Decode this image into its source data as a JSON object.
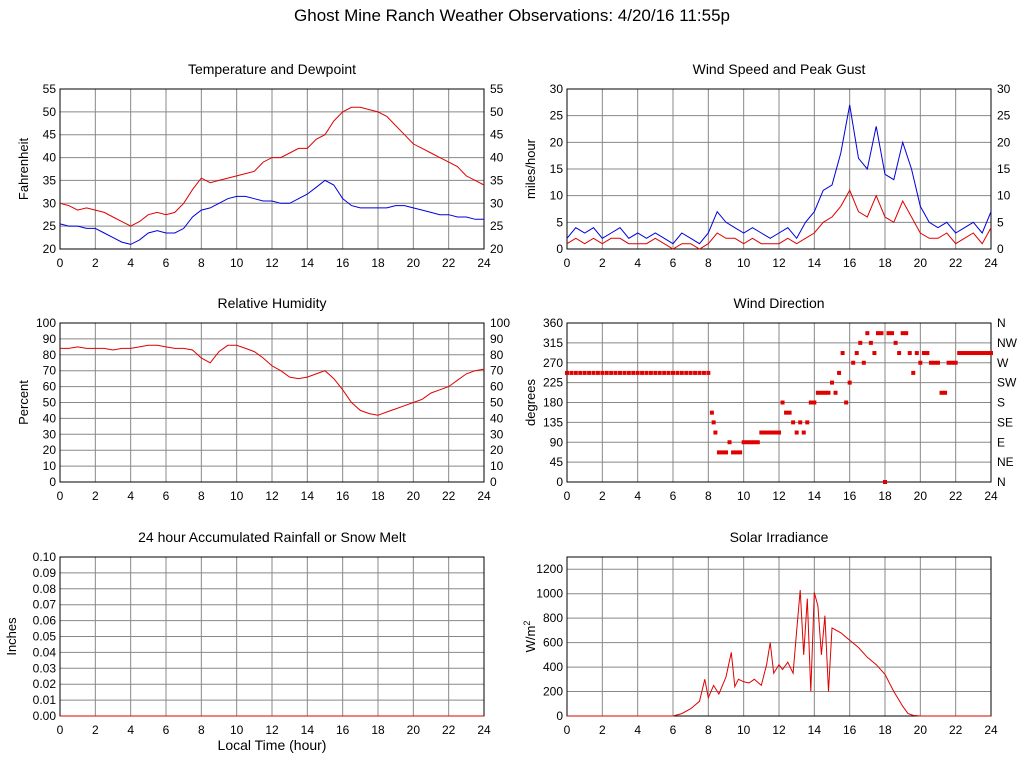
{
  "page_title": "Ghost Mine Ranch Weather Observations: 4/20/16 11:55p",
  "x_axis_label": "Local Time (hour)",
  "colors": {
    "red": "#e00000",
    "blue": "#0000dd"
  },
  "chart_data": [
    {
      "id": "temp",
      "type": "line",
      "title": "Temperature and Dewpoint",
      "ylabel": "Fahrenheit",
      "xlim": [
        0,
        24
      ],
      "ylim": [
        20,
        55
      ],
      "x_ticks": [
        0,
        2,
        4,
        6,
        8,
        10,
        12,
        14,
        16,
        18,
        20,
        22,
        24
      ],
      "y_ticks": [
        20,
        25,
        30,
        35,
        40,
        45,
        50,
        55
      ],
      "right_axis_ticks": [
        "20",
        "25",
        "30",
        "35",
        "40",
        "45",
        "50",
        "55"
      ],
      "series": [
        {
          "color": "#e00000",
          "x": [
            0,
            0.5,
            1,
            1.5,
            2,
            2.5,
            3,
            3.5,
            4,
            4.5,
            5,
            5.5,
            6,
            6.5,
            7,
            7.5,
            8,
            8.5,
            9,
            9.5,
            10,
            10.5,
            11,
            11.5,
            12,
            12.5,
            13,
            13.5,
            14,
            14.5,
            15,
            15.5,
            16,
            16.5,
            17,
            17.5,
            18,
            18.5,
            19,
            19.5,
            20,
            20.5,
            21,
            21.5,
            22,
            22.5,
            23,
            23.5,
            24
          ],
          "y": [
            30,
            29.5,
            28.5,
            29,
            28.5,
            28,
            27,
            26,
            25,
            26,
            27.5,
            28,
            27.5,
            28,
            30,
            33,
            35.5,
            34.5,
            35,
            35.5,
            36,
            36.5,
            37,
            39,
            40,
            40,
            41,
            42,
            42,
            44,
            45,
            48,
            50,
            51,
            51,
            50.5,
            50,
            49,
            47,
            45,
            43,
            42,
            41,
            40,
            39,
            38,
            36,
            35,
            34
          ]
        },
        {
          "color": "#0000dd",
          "x": [
            0,
            0.5,
            1,
            1.5,
            2,
            2.5,
            3,
            3.5,
            4,
            4.5,
            5,
            5.5,
            6,
            6.5,
            7,
            7.5,
            8,
            8.5,
            9,
            9.5,
            10,
            10.5,
            11,
            11.5,
            12,
            12.5,
            13,
            13.5,
            14,
            14.5,
            15,
            15.5,
            16,
            16.5,
            17,
            17.5,
            18,
            18.5,
            19,
            19.5,
            20,
            20.5,
            21,
            21.5,
            22,
            22.5,
            23,
            23.5,
            24
          ],
          "y": [
            25.5,
            25,
            25,
            24.5,
            24.5,
            23.5,
            22.5,
            21.5,
            21,
            22,
            23.5,
            24,
            23.5,
            23.5,
            24.5,
            27,
            28.5,
            29,
            30,
            31,
            31.5,
            31.5,
            31,
            30.5,
            30.5,
            30,
            30,
            31,
            32,
            33.5,
            35,
            34,
            31,
            29.5,
            29,
            29,
            29,
            29,
            29.5,
            29.5,
            29,
            28.5,
            28,
            27.5,
            27.5,
            27,
            27,
            26.5,
            26.5
          ]
        }
      ]
    },
    {
      "id": "wind",
      "type": "line",
      "title": "Wind Speed and Peak Gust",
      "ylabel": "miles/hour",
      "xlim": [
        0,
        24
      ],
      "ylim": [
        0,
        30
      ],
      "x_ticks": [
        0,
        2,
        4,
        6,
        8,
        10,
        12,
        14,
        16,
        18,
        20,
        22,
        24
      ],
      "y_ticks": [
        0,
        5,
        10,
        15,
        20,
        25,
        30
      ],
      "right_axis_ticks": [
        "0",
        "5",
        "10",
        "15",
        "20",
        "25",
        "30"
      ],
      "series": [
        {
          "color": "#0000dd",
          "x": [
            0,
            0.5,
            1,
            1.5,
            2,
            2.5,
            3,
            3.5,
            4,
            4.5,
            5,
            5.5,
            6,
            6.5,
            7,
            7.5,
            8,
            8.5,
            9,
            9.5,
            10,
            10.5,
            11,
            11.5,
            12,
            12.5,
            13,
            13.5,
            14,
            14.5,
            15,
            15.5,
            16,
            16.5,
            17,
            17.5,
            18,
            18.5,
            19,
            19.5,
            20,
            20.5,
            21,
            21.5,
            22,
            22.5,
            23,
            23.5,
            24
          ],
          "y": [
            2,
            4,
            3,
            4,
            2,
            3,
            4,
            2,
            3,
            2,
            3,
            2,
            1,
            3,
            2,
            1,
            3,
            7,
            5,
            4,
            3,
            4,
            3,
            2,
            3,
            4,
            2,
            5,
            7,
            11,
            12,
            18,
            27,
            17,
            15,
            23,
            14,
            13,
            20,
            15,
            8,
            5,
            4,
            5,
            3,
            4,
            5,
            3,
            7
          ]
        },
        {
          "color": "#e00000",
          "x": [
            0,
            0.5,
            1,
            1.5,
            2,
            2.5,
            3,
            3.5,
            4,
            4.5,
            5,
            5.5,
            6,
            6.5,
            7,
            7.5,
            8,
            8.5,
            9,
            9.5,
            10,
            10.5,
            11,
            11.5,
            12,
            12.5,
            13,
            13.5,
            14,
            14.5,
            15,
            15.5,
            16,
            16.5,
            17,
            17.5,
            18,
            18.5,
            19,
            19.5,
            20,
            20.5,
            21,
            21.5,
            22,
            22.5,
            23,
            23.5,
            24
          ],
          "y": [
            1,
            2,
            1,
            2,
            1,
            2,
            2,
            1,
            1,
            1,
            2,
            1,
            0,
            1,
            1,
            0,
            1,
            3,
            2,
            2,
            1,
            2,
            1,
            1,
            1,
            2,
            1,
            2,
            3,
            5,
            6,
            8,
            11,
            7,
            6,
            10,
            6,
            5,
            9,
            6,
            3,
            2,
            2,
            3,
            1,
            2,
            3,
            1,
            4
          ]
        }
      ]
    },
    {
      "id": "rh",
      "type": "line",
      "title": "Relative Humidity",
      "ylabel": "Percent",
      "xlim": [
        0,
        24
      ],
      "ylim": [
        0,
        100
      ],
      "x_ticks": [
        0,
        2,
        4,
        6,
        8,
        10,
        12,
        14,
        16,
        18,
        20,
        22,
        24
      ],
      "y_ticks": [
        0,
        10,
        20,
        30,
        40,
        50,
        60,
        70,
        80,
        90,
        100
      ],
      "right_axis_ticks": [
        "0",
        "10",
        "20",
        "30",
        "40",
        "50",
        "60",
        "70",
        "80",
        "90",
        "100"
      ],
      "series": [
        {
          "color": "#e00000",
          "x": [
            0,
            0.5,
            1,
            1.5,
            2,
            2.5,
            3,
            3.5,
            4,
            4.5,
            5,
            5.5,
            6,
            6.5,
            7,
            7.5,
            8,
            8.5,
            9,
            9.5,
            10,
            10.5,
            11,
            11.5,
            12,
            12.5,
            13,
            13.5,
            14,
            14.5,
            15,
            15.5,
            16,
            16.5,
            17,
            17.5,
            18,
            18.5,
            19,
            19.5,
            20,
            20.5,
            21,
            21.5,
            22,
            22.5,
            23,
            23.5,
            24
          ],
          "y": [
            84,
            84,
            85,
            84,
            84,
            84,
            83,
            84,
            84,
            85,
            86,
            86,
            85,
            84,
            84,
            83,
            78,
            75,
            82,
            86,
            86,
            84,
            82,
            78,
            73,
            70,
            66,
            65,
            66,
            68,
            70,
            65,
            58,
            50,
            45,
            43,
            42,
            44,
            46,
            48,
            50,
            52,
            56,
            58,
            60,
            64,
            68,
            70,
            71
          ]
        }
      ]
    },
    {
      "id": "dir",
      "type": "scatter",
      "title": "Wind Direction",
      "ylabel": "degrees",
      "xlim": [
        0,
        24
      ],
      "ylim": [
        0,
        360
      ],
      "x_ticks": [
        0,
        2,
        4,
        6,
        8,
        10,
        12,
        14,
        16,
        18,
        20,
        22,
        24
      ],
      "y_ticks": [
        0,
        45,
        90,
        135,
        180,
        225,
        270,
        315,
        360
      ],
      "right_axis_ticks": [
        "N",
        "NE",
        "E",
        "SE",
        "S",
        "SW",
        "W",
        "NW",
        "N"
      ],
      "series": [
        {
          "color": "#e00000",
          "x": [
            0,
            0.25,
            0.5,
            0.75,
            1,
            1.25,
            1.5,
            1.75,
            2,
            2.25,
            2.5,
            2.75,
            3,
            3.25,
            3.5,
            3.75,
            4,
            4.25,
            4.5,
            4.75,
            5,
            5.25,
            5.5,
            5.75,
            6,
            6.25,
            6.5,
            6.75,
            7,
            7.25,
            7.5,
            7.75,
            8,
            8.2,
            8.3,
            8.4,
            8.6,
            8.8,
            9,
            9.2,
            9.4,
            9.6,
            9.8,
            10,
            10.2,
            10.4,
            10.6,
            10.8,
            11,
            11.2,
            11.4,
            11.6,
            11.8,
            12,
            12.2,
            12.4,
            12.6,
            12.8,
            13,
            13.2,
            13.4,
            13.6,
            13.8,
            14,
            14.2,
            14.4,
            14.6,
            14.8,
            15,
            15.2,
            15.4,
            15.6,
            15.8,
            16,
            16.2,
            16.4,
            16.6,
            16.8,
            17,
            17.2,
            17.4,
            17.6,
            17.8,
            18,
            18.2,
            18.4,
            18.6,
            18.8,
            19,
            19.2,
            19.4,
            19.6,
            19.8,
            20,
            20.2,
            20.4,
            20.6,
            20.8,
            21,
            21.2,
            21.4,
            21.6,
            21.8,
            22,
            22.2,
            22.4,
            22.6,
            22.8,
            23,
            23.2,
            23.4,
            23.6,
            23.8,
            24
          ],
          "y": [
            247,
            247,
            247,
            247,
            247,
            247,
            247,
            247,
            247,
            247,
            247,
            247,
            247,
            247,
            247,
            247,
            247,
            247,
            247,
            247,
            247,
            247,
            247,
            247,
            247,
            247,
            247,
            247,
            247,
            247,
            247,
            247,
            247,
            157,
            135,
            112,
            67,
            67,
            67,
            90,
            67,
            67,
            67,
            90,
            90,
            90,
            90,
            90,
            112,
            112,
            112,
            112,
            112,
            112,
            180,
            157,
            157,
            135,
            112,
            135,
            112,
            135,
            180,
            180,
            202,
            202,
            202,
            202,
            225,
            202,
            247,
            292,
            180,
            225,
            270,
            292,
            315,
            270,
            337,
            315,
            292,
            337,
            337,
            0,
            337,
            337,
            315,
            292,
            337,
            337,
            292,
            247,
            292,
            270,
            292,
            292,
            270,
            270,
            270,
            202,
            202,
            270,
            270,
            270,
            292,
            292,
            292,
            292,
            292,
            292,
            292,
            292,
            292,
            292
          ]
        }
      ]
    },
    {
      "id": "rain",
      "type": "line",
      "title": "24 hour Accumulated Rainfall or Snow Melt",
      "ylabel": "Inches",
      "xlim": [
        0,
        24
      ],
      "ylim": [
        0,
        0.1
      ],
      "x_ticks": [
        0,
        2,
        4,
        6,
        8,
        10,
        12,
        14,
        16,
        18,
        20,
        22,
        24
      ],
      "y_ticks": [
        "0.00",
        "0.01",
        "0.02",
        "0.03",
        "0.04",
        "0.05",
        "0.06",
        "0.07",
        "0.08",
        "0.09",
        "0.10"
      ],
      "series": [
        {
          "color": "#e00000",
          "x": [
            0,
            24
          ],
          "y": [
            0,
            0
          ]
        }
      ]
    },
    {
      "id": "solar",
      "type": "line",
      "title": "Solar Irradiance",
      "ylabel": "W/m",
      "ylabel_sup": "2",
      "xlim": [
        0,
        24
      ],
      "ylim": [
        0,
        1300
      ],
      "x_ticks": [
        0,
        2,
        4,
        6,
        8,
        10,
        12,
        14,
        16,
        18,
        20,
        22,
        24
      ],
      "y_ticks": [
        0,
        200,
        400,
        600,
        800,
        1000,
        1200
      ],
      "series": [
        {
          "color": "#e00000",
          "x": [
            0,
            1,
            2,
            3,
            4,
            5,
            6,
            6.5,
            7,
            7.5,
            7.8,
            8,
            8.3,
            8.6,
            9,
            9.3,
            9.5,
            9.7,
            10,
            10.3,
            10.6,
            11,
            11.3,
            11.5,
            11.7,
            12,
            12.2,
            12.5,
            12.8,
            13,
            13.2,
            13.4,
            13.6,
            13.8,
            14,
            14.2,
            14.4,
            14.6,
            14.8,
            15,
            15.5,
            16,
            16.5,
            17,
            17.5,
            18,
            18.5,
            19,
            19.3,
            19.6,
            20,
            21,
            22,
            23,
            24
          ],
          "y": [
            0,
            0,
            0,
            0,
            0,
            0,
            0,
            20,
            60,
            120,
            300,
            150,
            250,
            180,
            320,
            520,
            240,
            300,
            280,
            270,
            300,
            250,
            420,
            600,
            350,
            420,
            380,
            440,
            350,
            700,
            1030,
            500,
            960,
            200,
            1010,
            900,
            500,
            820,
            200,
            720,
            680,
            620,
            560,
            480,
            420,
            340,
            200,
            80,
            20,
            5,
            0,
            0,
            0,
            0,
            0
          ]
        }
      ]
    }
  ]
}
